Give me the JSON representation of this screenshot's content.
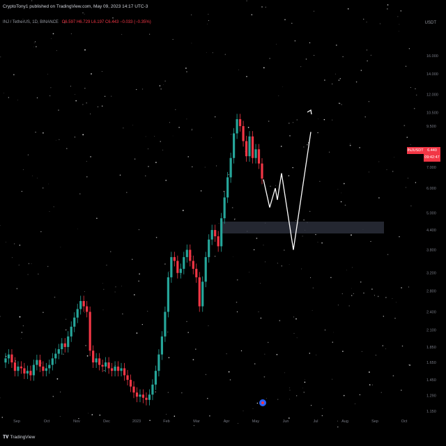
{
  "header": {
    "publisher_line": "CryptoTony1 published on TradingView.com, May 09, 2023 14:17 UTC-3"
  },
  "legend": {
    "symbol": "INJ / TetherUS, 1D, BINANCE",
    "ohlc": "O6.597 H6.729 L6.197 C6.443 −0.033 (−0.35%)"
  },
  "currency": "USDT",
  "price_tag": {
    "symbol": "INJUSDT",
    "price": "6.440",
    "countdown": "09:42:47"
  },
  "footer": {
    "brand": "TradingView"
  },
  "colors": {
    "up": "#26a69a",
    "down": "#f23645",
    "background": "#000000",
    "projection": "#ffffff",
    "zone": "#2a2e39"
  },
  "chart_data": {
    "type": "candlestick",
    "title": "INJ / TetherUS, 1D, BINANCE",
    "y_scale": "log",
    "ylim": [
      1.15,
      18.2
    ],
    "y_ticks": [
      "16.000",
      "14.000",
      "12.000",
      "10.500",
      "9.500",
      "8.000",
      "7.000",
      "6.000",
      "5.000",
      "4.400",
      "3.800",
      "3.200",
      "2.800",
      "2.400",
      "2.100",
      "1.850",
      "1.650",
      "1.450",
      "1.290",
      "1.150"
    ],
    "x_ticks": [
      "Sep",
      "Oct",
      "Nov",
      "Dec",
      "2023",
      "Feb",
      "Mar",
      "Apr",
      "May",
      "Jun",
      "Jul",
      "Aug",
      "Sep",
      "Oct"
    ],
    "series": [
      {
        "values": [
          1.7,
          1.75,
          1.65,
          1.55,
          1.6,
          1.58,
          1.52,
          1.55,
          1.5,
          1.62,
          1.68,
          1.6,
          1.55,
          1.58,
          1.62,
          1.7,
          1.76,
          1.82,
          1.9,
          1.85,
          2.0,
          2.15,
          2.3,
          2.45,
          2.6,
          2.5,
          2.4,
          1.8,
          1.65,
          1.7,
          1.62,
          1.6,
          1.65,
          1.58,
          1.55,
          1.6,
          1.55,
          1.58,
          1.5,
          1.45,
          1.38,
          1.32,
          1.28,
          1.3,
          1.27,
          1.25,
          1.3,
          1.4,
          1.55,
          1.75,
          2.0,
          2.4,
          3.1,
          3.6,
          3.5,
          3.2,
          3.3,
          3.6,
          3.8,
          3.5,
          3.3,
          3.1,
          2.5,
          3.0,
          3.6,
          4.1,
          4.4,
          4.2,
          3.9,
          4.8,
          5.6,
          6.5,
          7.5,
          9.0,
          10.0,
          9.5,
          8.5,
          7.6,
          8.8,
          7.5,
          8.0,
          7.2,
          6.44
        ]
      }
    ],
    "projection_path": [
      6.4,
      5.2,
      6.0,
      5.5,
      6.7,
      3.8,
      9.1
    ],
    "support_zone": [
      3.7,
      3.95
    ],
    "last_price": 6.44
  }
}
